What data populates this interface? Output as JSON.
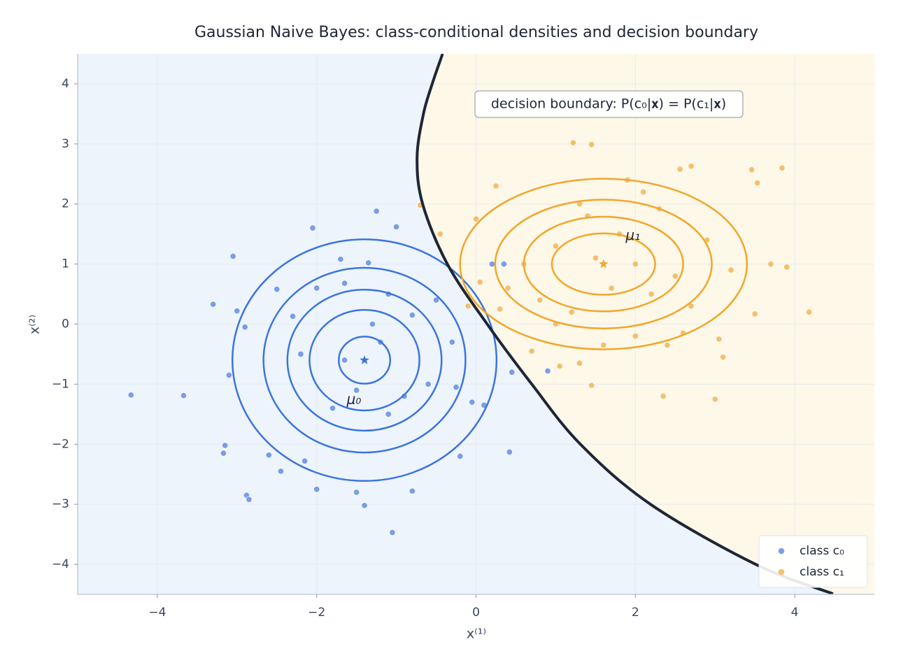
{
  "chart_data": {
    "type": "scatter",
    "title": "Gaussian Naive Bayes: class-conditional densities and decision boundary",
    "x_label": "x⁽¹⁾",
    "y_label": "x⁽²⁾",
    "xlim": [
      -5,
      5
    ],
    "ylim": [
      -4.5,
      4.5
    ],
    "xticks": [
      {
        "value": -4,
        "label": "−4"
      },
      {
        "value": -2,
        "label": "−2"
      },
      0,
      2,
      4
    ],
    "yticks": [
      {
        "value": -4,
        "label": "−4"
      },
      {
        "value": -3,
        "label": "−3"
      },
      {
        "value": -2,
        "label": "−2"
      },
      {
        "value": -1,
        "label": "−1"
      },
      0,
      1,
      2,
      3,
      4
    ],
    "grid": true,
    "legend": "lower right",
    "series": [
      {
        "name": "class c₀",
        "color": "#5b87e6",
        "x": [
          -4.33,
          -3.67,
          -3.3,
          -3.05,
          -3.0,
          -2.9,
          -3.1,
          -2.88,
          -2.85,
          -3.15,
          -3.17,
          -2.6,
          -2.45,
          -2.5,
          -2.3,
          -2.05,
          -2.0,
          -1.7,
          -1.65,
          -1.25,
          -1.0,
          -1.35,
          -1.1,
          -0.8,
          -0.5,
          -0.3,
          -0.25,
          -0.05,
          0.1,
          0.2,
          0.35,
          0.45,
          0.42,
          0.9,
          -0.2,
          -0.8,
          -1.05,
          -1.4,
          -1.5,
          -2.0,
          -2.15,
          -1.5,
          -1.2,
          -1.65,
          -1.1,
          -0.9,
          -1.8,
          -1.3,
          -0.6,
          -2.2
        ],
        "y": [
          -1.18,
          -1.19,
          0.33,
          1.13,
          0.22,
          -0.05,
          -0.85,
          -2.85,
          -2.92,
          -2.02,
          -2.15,
          -2.18,
          -2.45,
          0.58,
          0.13,
          1.6,
          0.6,
          1.08,
          0.68,
          1.88,
          1.62,
          1.02,
          0.5,
          0.15,
          0.4,
          -0.3,
          -1.05,
          -1.3,
          -1.35,
          1.0,
          1.0,
          -0.8,
          -2.13,
          -0.78,
          -2.2,
          -2.78,
          -3.47,
          -3.02,
          -2.8,
          -2.75,
          -2.28,
          -1.1,
          -0.3,
          -0.6,
          -1.5,
          -1.2,
          -1.4,
          0.0,
          -1.0,
          -0.5
        ]
      },
      {
        "name": "class c₁",
        "color": "#f4b04a",
        "x": [
          1.22,
          1.45,
          0.25,
          -0.7,
          -0.45,
          0.0,
          2.3,
          2.56,
          2.7,
          3.46,
          3.84,
          3.53,
          3.7,
          3.9,
          4.18,
          3.5,
          3.05,
          3.1,
          3.0,
          2.35,
          1.45,
          1.3,
          1.05,
          0.7,
          0.3,
          0.05,
          -0.1,
          0.4,
          1.6,
          2.0,
          2.6,
          1.8,
          1.4,
          2.1,
          1.0,
          0.8,
          2.5,
          2.9,
          1.2,
          1.7,
          2.2,
          1.5,
          2.0,
          0.6,
          3.2,
          2.7,
          1.9,
          1.0,
          2.4,
          1.3
        ],
        "y": [
          3.02,
          2.99,
          2.3,
          1.98,
          1.5,
          1.75,
          1.92,
          2.58,
          2.63,
          2.57,
          2.6,
          2.35,
          1.0,
          0.95,
          0.2,
          0.17,
          -0.25,
          -0.55,
          -1.25,
          -1.2,
          -1.02,
          -0.65,
          -0.7,
          -0.45,
          0.25,
          0.7,
          0.3,
          0.6,
          -0.35,
          -0.2,
          -0.15,
          1.5,
          1.8,
          2.2,
          1.3,
          0.4,
          0.8,
          1.4,
          0.2,
          0.6,
          0.5,
          1.1,
          1.0,
          1.0,
          0.9,
          0.3,
          2.4,
          0.0,
          -0.35,
          2.0
        ]
      }
    ],
    "gaussians": [
      {
        "mean": [
          -1.4,
          -0.6
        ],
        "std": [
          0.75,
          0.91
        ],
        "levels": [
          0.43,
          0.92,
          1.29,
          1.69,
          2.21
        ],
        "color": "#3b74e0",
        "label": "μ₀"
      },
      {
        "mean": [
          1.6,
          1.0
        ],
        "std": [
          0.9,
          0.71
        ],
        "levels": [
          0.72,
          1.11,
          1.51,
          2.0
        ],
        "color": "#f2a62a",
        "label": "μ₁"
      }
    ],
    "boundary": {
      "color": "#1e2636",
      "x": [
        -0.42,
        -0.55,
        -0.66,
        -0.74,
        -0.67,
        -0.36,
        0.14,
        0.7,
        1.31,
        2.19,
        3.51,
        4.48
      ],
      "y": [
        4.5,
        4.0,
        3.5,
        2.77,
        2.0,
        1.0,
        0.0,
        -1.0,
        -2.0,
        -3.0,
        -4.0,
        -4.49
      ]
    },
    "region_colors": [
      "#eef4fc",
      "#fdf8e8"
    ],
    "annotation": "decision boundary: P(c₀|𝐱) = P(c₁|𝐱)"
  }
}
